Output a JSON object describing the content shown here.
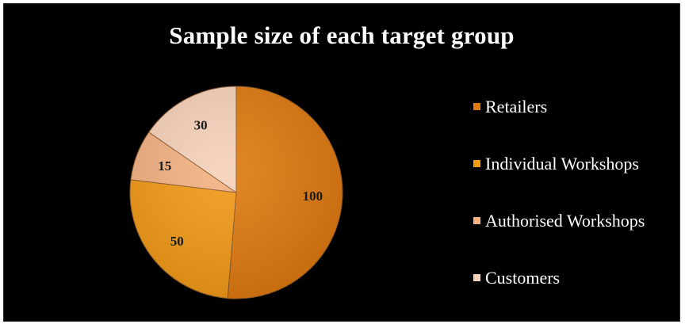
{
  "chart_data": {
    "type": "pie",
    "title": "Sample size of each target group",
    "categories": [
      "Retailers",
      "Individual Workshops",
      "Authorised Workshops",
      "Customers"
    ],
    "values": [
      100,
      50,
      15,
      30
    ],
    "colors": [
      "#e07a10",
      "#f39a16",
      "#f5b283",
      "#f7d2bb"
    ],
    "data_labels": [
      "100",
      "50",
      "15",
      "30"
    ],
    "legend_position": "right"
  }
}
